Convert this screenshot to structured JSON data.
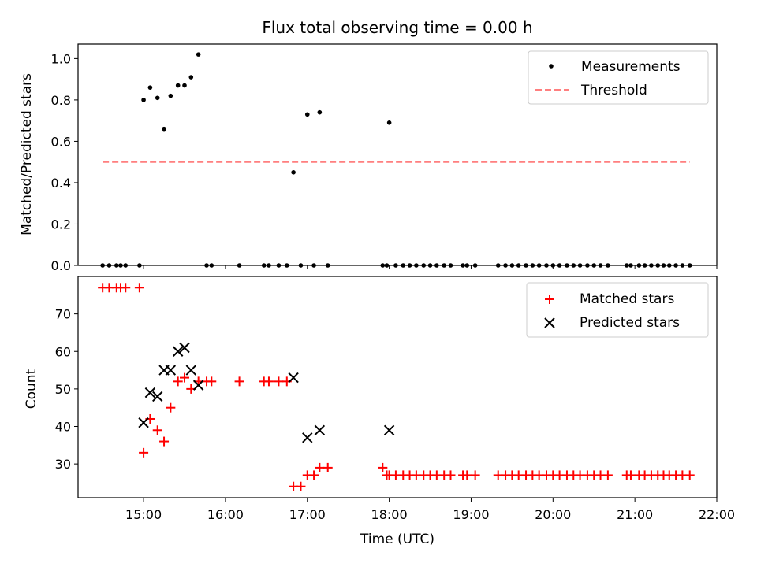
{
  "chart_data": [
    {
      "type": "scatter",
      "title": "Flux total observing time = 0.00 h",
      "xlabel": "",
      "ylabel": "Matched/Predicted stars",
      "ylim": [
        0,
        1.07
      ],
      "yticks": [
        "0.0",
        "0.2",
        "0.4",
        "0.6",
        "0.8",
        "1.0"
      ],
      "xlim": [
        14.2,
        22.0
      ],
      "legend_position": "top-right",
      "colors": {
        "measurements": "#000000",
        "threshold": "#ff7f7f"
      },
      "series": [
        {
          "name": "Measurements",
          "style": "point",
          "x": [
            14.5,
            14.58,
            14.67,
            14.72,
            14.78,
            14.95,
            15.0,
            15.08,
            15.17,
            15.25,
            15.33,
            15.42,
            15.5,
            15.58,
            15.67,
            15.77,
            15.83,
            16.17,
            16.47,
            16.53,
            16.65,
            16.75,
            16.83,
            16.92,
            17.0,
            17.08,
            17.15,
            17.25,
            17.92,
            17.97,
            18.0,
            18.08,
            18.17,
            18.25,
            18.33,
            18.42,
            18.5,
            18.58,
            18.67,
            18.75,
            18.9,
            18.95,
            19.05,
            19.33,
            19.42,
            19.5,
            19.58,
            19.67,
            19.75,
            19.83,
            19.92,
            20.0,
            20.08,
            20.17,
            20.25,
            20.33,
            20.42,
            20.5,
            20.58,
            20.67,
            20.9,
            20.95,
            21.05,
            21.12,
            21.2,
            21.28,
            21.35,
            21.42,
            21.5,
            21.58,
            21.67
          ],
          "y": [
            0,
            0,
            0,
            0,
            0,
            0,
            0.8,
            0.86,
            0.81,
            0.66,
            0.82,
            0.87,
            0.87,
            0.91,
            1.02,
            0,
            0,
            0,
            0,
            0,
            0,
            0,
            0.45,
            0,
            0.73,
            0,
            0.74,
            0,
            0,
            0,
            0.69,
            0,
            0,
            0,
            0,
            0,
            0,
            0,
            0,
            0,
            0,
            0,
            0,
            0,
            0,
            0,
            0,
            0,
            0,
            0,
            0,
            0,
            0,
            0,
            0,
            0,
            0,
            0,
            0,
            0,
            0,
            0,
            0,
            0,
            0,
            0,
            0,
            0,
            0,
            0,
            0
          ]
        },
        {
          "name": "Threshold",
          "style": "dashed-line",
          "x": [
            14.5,
            21.67
          ],
          "y": [
            0.5,
            0.5
          ]
        }
      ]
    },
    {
      "type": "scatter",
      "title": "",
      "xlabel": "Time (UTC)",
      "ylabel": "Count",
      "ylim": [
        21,
        80
      ],
      "yticks": [
        "30",
        "40",
        "50",
        "60",
        "70"
      ],
      "xlim": [
        14.2,
        22.0
      ],
      "xticks": [
        "15:00",
        "16:00",
        "17:00",
        "18:00",
        "19:00",
        "20:00",
        "21:00",
        "22:00"
      ],
      "legend_position": "top-right",
      "colors": {
        "matched": "#ff0000",
        "predicted": "#000000"
      },
      "series": [
        {
          "name": "Matched stars",
          "marker": "plus",
          "x": [
            14.5,
            14.58,
            14.67,
            14.72,
            14.78,
            14.95,
            15.0,
            15.08,
            15.17,
            15.25,
            15.33,
            15.42,
            15.5,
            15.58,
            15.67,
            15.77,
            15.83,
            16.17,
            16.47,
            16.53,
            16.65,
            16.75,
            16.83,
            16.92,
            17.0,
            17.08,
            17.15,
            17.25,
            17.92,
            17.97,
            18.0,
            18.08,
            18.17,
            18.25,
            18.33,
            18.42,
            18.5,
            18.58,
            18.67,
            18.75,
            18.9,
            18.95,
            19.05,
            19.33,
            19.42,
            19.5,
            19.58,
            19.67,
            19.75,
            19.83,
            19.92,
            20.0,
            20.08,
            20.17,
            20.25,
            20.33,
            20.42,
            20.5,
            20.58,
            20.67,
            20.9,
            20.95,
            21.05,
            21.12,
            21.2,
            21.28,
            21.35,
            21.42,
            21.5,
            21.58,
            21.67
          ],
          "y": [
            77,
            77,
            77,
            77,
            77,
            77,
            33,
            42,
            39,
            36,
            45,
            52,
            53,
            50,
            52,
            52,
            52,
            52,
            52,
            52,
            52,
            52,
            24,
            24,
            27,
            27,
            29,
            29,
            29,
            27,
            27,
            27,
            27,
            27,
            27,
            27,
            27,
            27,
            27,
            27,
            27,
            27,
            27,
            27,
            27,
            27,
            27,
            27,
            27,
            27,
            27,
            27,
            27,
            27,
            27,
            27,
            27,
            27,
            27,
            27,
            27,
            27,
            27,
            27,
            27,
            27,
            27,
            27,
            27,
            27,
            27
          ]
        },
        {
          "name": "Predicted stars",
          "marker": "x",
          "x": [
            15.0,
            15.08,
            15.17,
            15.25,
            15.33,
            15.42,
            15.5,
            15.58,
            15.67,
            16.83,
            17.0,
            17.15,
            18.0
          ],
          "y": [
            41,
            49,
            48,
            55,
            55,
            60,
            61,
            55,
            51,
            53,
            37,
            39,
            39
          ]
        }
      ]
    }
  ]
}
